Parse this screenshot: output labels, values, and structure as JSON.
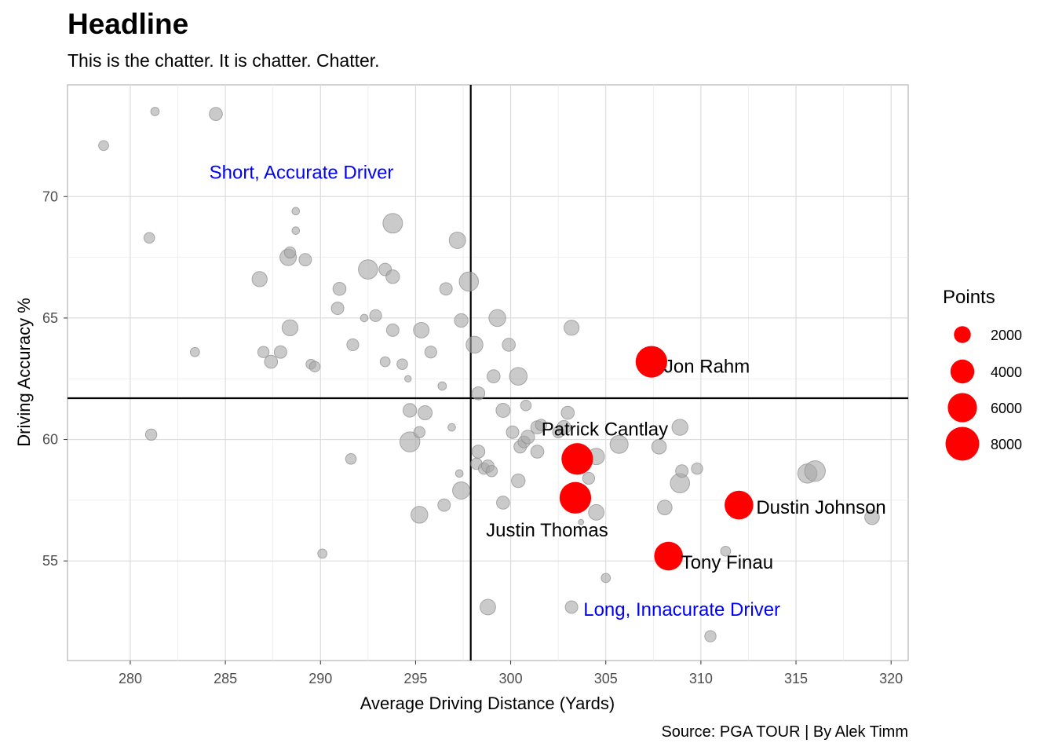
{
  "chart_data": {
    "type": "scatter",
    "title": "Headline",
    "subtitle": "This is the chatter. It is chatter. Chatter.",
    "caption": "Source: PGA TOUR | By Alek Timm",
    "xlabel": "Average Driving Distance (Yards)",
    "ylabel": "Driving Accuracy %",
    "xlim": [
      276.7,
      320.9
    ],
    "ylim": [
      50.9,
      74.6
    ],
    "xticks": [
      280,
      285,
      290,
      295,
      300,
      305,
      310,
      315,
      320
    ],
    "yticks": [
      55,
      60,
      65,
      70
    ],
    "grid": true,
    "reference_lines": {
      "x": 297.9,
      "y": 61.7
    },
    "colors": {
      "background_points": "#a6a6a6",
      "highlight_points": "#ff0000",
      "quadrant_labels": "#0000ff",
      "reference_lines": "#000000"
    },
    "legend": {
      "title": "Points",
      "placement": "right",
      "entries": [
        {
          "label": "2000",
          "value": 2000
        },
        {
          "label": "4000",
          "value": 4000
        },
        {
          "label": "6000",
          "value": 6000
        },
        {
          "label": "8000",
          "value": 8000
        }
      ]
    },
    "quadrant_labels": [
      {
        "text": "Short, Accurate Driver",
        "x": 289.0,
        "y": 71.0
      },
      {
        "text": "Long, Innacurate Driver",
        "x": 309.0,
        "y": 53.0
      }
    ],
    "highlighted": [
      {
        "label": "Jon Rahm",
        "x": 307.4,
        "y": 63.2,
        "points": 7000
      },
      {
        "label": "Patrick Cantlay",
        "x": 303.5,
        "y": 59.2,
        "points": 7000
      },
      {
        "label": "Justin Thomas",
        "x": 303.4,
        "y": 57.6,
        "points": 7000
      },
      {
        "label": "Dustin Johnson",
        "x": 312.0,
        "y": 57.3,
        "points": 5800
      },
      {
        "label": "Tony Finau",
        "x": 308.3,
        "y": 55.2,
        "points": 5800
      }
    ],
    "others": [
      {
        "x": 278.6,
        "y": 72.1,
        "points": 700
      },
      {
        "x": 281.3,
        "y": 73.5,
        "points": 500
      },
      {
        "x": 284.5,
        "y": 73.4,
        "points": 1200
      },
      {
        "x": 281.0,
        "y": 68.3,
        "points": 800
      },
      {
        "x": 281.1,
        "y": 60.2,
        "points": 900
      },
      {
        "x": 283.4,
        "y": 63.6,
        "points": 600
      },
      {
        "x": 286.8,
        "y": 66.6,
        "points": 1600
      },
      {
        "x": 287.0,
        "y": 63.6,
        "points": 900
      },
      {
        "x": 287.4,
        "y": 63.2,
        "points": 1200
      },
      {
        "x": 287.9,
        "y": 63.6,
        "points": 1100
      },
      {
        "x": 288.3,
        "y": 67.5,
        "points": 1900
      },
      {
        "x": 288.4,
        "y": 67.7,
        "points": 900
      },
      {
        "x": 288.7,
        "y": 69.4,
        "points": 400
      },
      {
        "x": 288.7,
        "y": 68.6,
        "points": 400
      },
      {
        "x": 288.4,
        "y": 64.6,
        "points": 1800
      },
      {
        "x": 289.2,
        "y": 67.4,
        "points": 1100
      },
      {
        "x": 289.5,
        "y": 63.1,
        "points": 700
      },
      {
        "x": 289.7,
        "y": 63.0,
        "points": 800
      },
      {
        "x": 290.1,
        "y": 55.3,
        "points": 600
      },
      {
        "x": 291.0,
        "y": 66.2,
        "points": 1200
      },
      {
        "x": 290.9,
        "y": 65.4,
        "points": 1100
      },
      {
        "x": 291.6,
        "y": 59.2,
        "points": 800
      },
      {
        "x": 291.7,
        "y": 63.9,
        "points": 1000
      },
      {
        "x": 292.3,
        "y": 65.0,
        "points": 400
      },
      {
        "x": 292.5,
        "y": 67.0,
        "points": 2600
      },
      {
        "x": 292.9,
        "y": 65.1,
        "points": 1000
      },
      {
        "x": 293.4,
        "y": 67.0,
        "points": 1100
      },
      {
        "x": 293.8,
        "y": 66.7,
        "points": 1300
      },
      {
        "x": 293.4,
        "y": 63.2,
        "points": 700
      },
      {
        "x": 293.8,
        "y": 64.5,
        "points": 1100
      },
      {
        "x": 293.8,
        "y": 68.9,
        "points": 2700
      },
      {
        "x": 294.3,
        "y": 63.1,
        "points": 800
      },
      {
        "x": 294.6,
        "y": 62.5,
        "points": 300
      },
      {
        "x": 294.7,
        "y": 61.2,
        "points": 1300
      },
      {
        "x": 294.7,
        "y": 59.9,
        "points": 2800
      },
      {
        "x": 295.2,
        "y": 60.3,
        "points": 900
      },
      {
        "x": 295.3,
        "y": 64.5,
        "points": 1700
      },
      {
        "x": 295.5,
        "y": 61.1,
        "points": 1400
      },
      {
        "x": 295.2,
        "y": 56.9,
        "points": 2000
      },
      {
        "x": 295.8,
        "y": 63.6,
        "points": 1000
      },
      {
        "x": 296.4,
        "y": 62.2,
        "points": 500
      },
      {
        "x": 296.5,
        "y": 57.3,
        "points": 1100
      },
      {
        "x": 296.6,
        "y": 66.2,
        "points": 1100
      },
      {
        "x": 296.9,
        "y": 60.5,
        "points": 400
      },
      {
        "x": 297.2,
        "y": 68.2,
        "points": 1900
      },
      {
        "x": 297.3,
        "y": 58.6,
        "points": 400
      },
      {
        "x": 297.4,
        "y": 64.9,
        "points": 1300
      },
      {
        "x": 297.4,
        "y": 57.9,
        "points": 2100
      },
      {
        "x": 297.8,
        "y": 66.5,
        "points": 2600
      },
      {
        "x": 298.1,
        "y": 63.9,
        "points": 2000
      },
      {
        "x": 298.3,
        "y": 59.5,
        "points": 1200
      },
      {
        "x": 298.2,
        "y": 59.0,
        "points": 900
      },
      {
        "x": 298.3,
        "y": 61.9,
        "points": 1200
      },
      {
        "x": 298.6,
        "y": 58.8,
        "points": 900
      },
      {
        "x": 298.8,
        "y": 58.9,
        "points": 1100
      },
      {
        "x": 299.0,
        "y": 58.7,
        "points": 900
      },
      {
        "x": 298.8,
        "y": 53.1,
        "points": 1700
      },
      {
        "x": 299.1,
        "y": 62.6,
        "points": 1200
      },
      {
        "x": 299.3,
        "y": 65.0,
        "points": 2000
      },
      {
        "x": 299.6,
        "y": 61.2,
        "points": 1400
      },
      {
        "x": 299.6,
        "y": 57.4,
        "points": 1200
      },
      {
        "x": 299.9,
        "y": 63.9,
        "points": 1200
      },
      {
        "x": 300.1,
        "y": 60.3,
        "points": 1100
      },
      {
        "x": 300.4,
        "y": 62.6,
        "points": 2200
      },
      {
        "x": 300.4,
        "y": 58.3,
        "points": 1300
      },
      {
        "x": 300.5,
        "y": 59.7,
        "points": 1100
      },
      {
        "x": 300.7,
        "y": 59.9,
        "points": 1000
      },
      {
        "x": 300.9,
        "y": 60.1,
        "points": 1300
      },
      {
        "x": 300.8,
        "y": 61.4,
        "points": 800
      },
      {
        "x": 301.4,
        "y": 60.5,
        "points": 1200
      },
      {
        "x": 301.4,
        "y": 59.5,
        "points": 1200
      },
      {
        "x": 301.6,
        "y": 60.6,
        "points": 900
      },
      {
        "x": 302.5,
        "y": 60.3,
        "points": 900
      },
      {
        "x": 302.8,
        "y": 60.5,
        "points": 1300
      },
      {
        "x": 303.0,
        "y": 61.1,
        "points": 1200
      },
      {
        "x": 303.2,
        "y": 64.6,
        "points": 1600
      },
      {
        "x": 303.2,
        "y": 53.1,
        "points": 1100
      },
      {
        "x": 303.7,
        "y": 56.6,
        "points": 200
      },
      {
        "x": 304.1,
        "y": 58.4,
        "points": 1000
      },
      {
        "x": 304.5,
        "y": 59.3,
        "points": 1900
      },
      {
        "x": 304.5,
        "y": 57.0,
        "points": 1700
      },
      {
        "x": 305.0,
        "y": 54.3,
        "points": 600
      },
      {
        "x": 305.7,
        "y": 59.8,
        "points": 2300
      },
      {
        "x": 307.8,
        "y": 59.7,
        "points": 1500
      },
      {
        "x": 308.1,
        "y": 57.2,
        "points": 1500
      },
      {
        "x": 308.9,
        "y": 58.2,
        "points": 2600
      },
      {
        "x": 308.9,
        "y": 60.5,
        "points": 1800
      },
      {
        "x": 309.0,
        "y": 58.7,
        "points": 1100
      },
      {
        "x": 309.8,
        "y": 58.8,
        "points": 900
      },
      {
        "x": 310.5,
        "y": 51.9,
        "points": 900
      },
      {
        "x": 311.3,
        "y": 55.4,
        "points": 700
      },
      {
        "x": 315.6,
        "y": 58.6,
        "points": 2600
      },
      {
        "x": 316.0,
        "y": 58.7,
        "points": 3000
      },
      {
        "x": 319.0,
        "y": 56.8,
        "points": 1500
      }
    ]
  }
}
